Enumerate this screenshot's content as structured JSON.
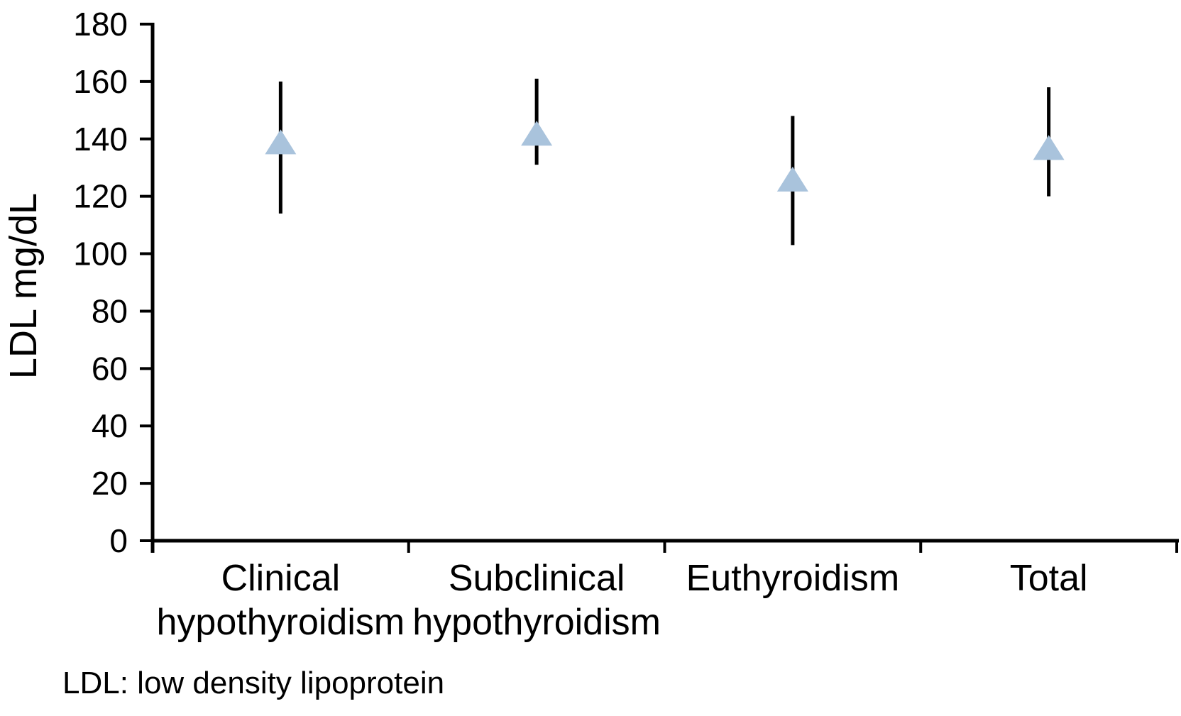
{
  "chart_data": {
    "type": "scatter",
    "subtype": "mean-with-error-bars",
    "title": "",
    "xlabel": "",
    "ylabel": "LDL mg/dL",
    "footnote": "LDL: low density lipoprotein",
    "ylim": [
      0,
      180
    ],
    "yticks": [
      0,
      20,
      40,
      60,
      80,
      100,
      120,
      140,
      160,
      180
    ],
    "grid": false,
    "legend": false,
    "marker": "triangle-up",
    "colors": {
      "marker_fill": "#a9c3dc",
      "error_bar": "#000000",
      "axis": "#000000",
      "text": "#000000",
      "background": "#ffffff"
    },
    "categories": [
      "Clinical\nhypothyroidism",
      "Subclinical\nhypothyroidism",
      "Euthyroidism",
      "Total"
    ],
    "series": [
      {
        "name": "LDL mg/dL",
        "points": [
          {
            "category": "Clinical hypothyroidism",
            "value": 139,
            "lower": 114,
            "upper": 160
          },
          {
            "category": "Subclinical hypothyroidism",
            "value": 142,
            "lower": 131,
            "upper": 161
          },
          {
            "category": "Euthyroidism",
            "value": 126,
            "lower": 103,
            "upper": 148
          },
          {
            "category": "Total",
            "value": 137,
            "lower": 120,
            "upper": 158
          }
        ]
      }
    ]
  }
}
